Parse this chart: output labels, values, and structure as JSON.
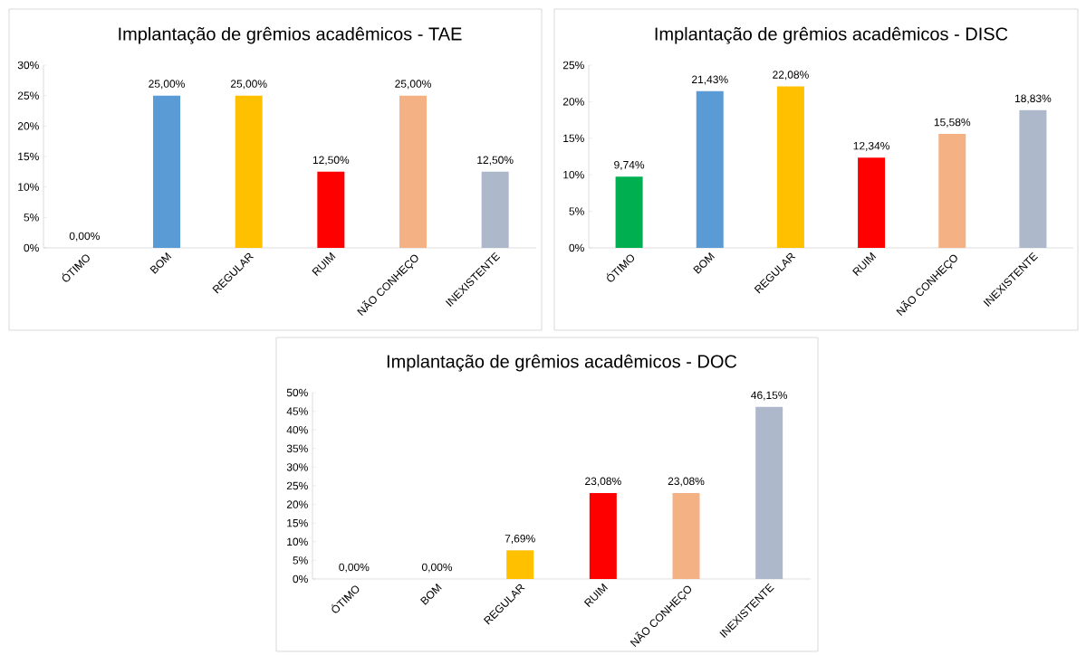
{
  "chart_data": [
    {
      "type": "bar",
      "title": "Implantação de grêmios acadêmicos - TAE",
      "categories": [
        "ÓTIMO",
        "BOM",
        "REGULAR",
        "RUIM",
        "NÃO CONHEÇO",
        "INEXISTENTE"
      ],
      "values": [
        0,
        25,
        25,
        12.5,
        25,
        12.5
      ],
      "value_labels": [
        "0,00%",
        "25,00%",
        "25,00%",
        "12,50%",
        "25,00%",
        "12,50%"
      ],
      "colors": [
        "#00b050",
        "#5b9bd5",
        "#ffc000",
        "#ff0000",
        "#f4b183",
        "#adb9ca"
      ],
      "ylim": [
        0,
        30
      ],
      "yticks": [
        {
          "value": 0,
          "label": "0%"
        },
        {
          "value": 5,
          "label": "5%"
        },
        {
          "value": 10,
          "label": "10%"
        },
        {
          "value": 15,
          "label": "15%"
        },
        {
          "value": 20,
          "label": "20%"
        },
        {
          "value": 25,
          "label": "25%"
        },
        {
          "value": 30,
          "label": "30%"
        }
      ]
    },
    {
      "type": "bar",
      "title": "Implantação de grêmios acadêmicos - DISC",
      "categories": [
        "ÓTIMO",
        "BOM",
        "REGULAR",
        "RUIM",
        "NÃO CONHEÇO",
        "INEXISTENTE"
      ],
      "values": [
        9.74,
        21.43,
        22.08,
        12.34,
        15.58,
        18.83
      ],
      "value_labels": [
        "9,74%",
        "21,43%",
        "22,08%",
        "12,34%",
        "15,58%",
        "18,83%"
      ],
      "colors": [
        "#00b050",
        "#5b9bd5",
        "#ffc000",
        "#ff0000",
        "#f4b183",
        "#adb9ca"
      ],
      "ylim": [
        0,
        25
      ],
      "yticks": [
        {
          "value": 0,
          "label": "0%"
        },
        {
          "value": 5,
          "label": "5%"
        },
        {
          "value": 10,
          "label": "10%"
        },
        {
          "value": 15,
          "label": "15%"
        },
        {
          "value": 20,
          "label": "20%"
        },
        {
          "value": 25,
          "label": "25%"
        }
      ]
    },
    {
      "type": "bar",
      "title": "Implantação de grêmios acadêmicos - DOC",
      "categories": [
        "ÓTIMO",
        "BOM",
        "REGULAR",
        "RUIM",
        "NÃO CONHEÇO",
        "INEXISTENTE"
      ],
      "values": [
        0,
        0,
        7.69,
        23.08,
        23.08,
        46.15
      ],
      "value_labels": [
        "0,00%",
        "0,00%",
        "7,69%",
        "23,08%",
        "23,08%",
        "46,15%"
      ],
      "colors": [
        "#00b050",
        "#5b9bd5",
        "#ffc000",
        "#ff0000",
        "#f4b183",
        "#adb9ca"
      ],
      "ylim": [
        0,
        50
      ],
      "yticks": [
        {
          "value": 0,
          "label": "0%"
        },
        {
          "value": 5,
          "label": "5%"
        },
        {
          "value": 10,
          "label": "10%"
        },
        {
          "value": 15,
          "label": "15%"
        },
        {
          "value": 20,
          "label": "20%"
        },
        {
          "value": 25,
          "label": "25%"
        },
        {
          "value": 30,
          "label": "30%"
        },
        {
          "value": 35,
          "label": "35%"
        },
        {
          "value": 40,
          "label": "40%"
        },
        {
          "value": 45,
          "label": "45%"
        },
        {
          "value": 50,
          "label": "50%"
        }
      ]
    }
  ]
}
